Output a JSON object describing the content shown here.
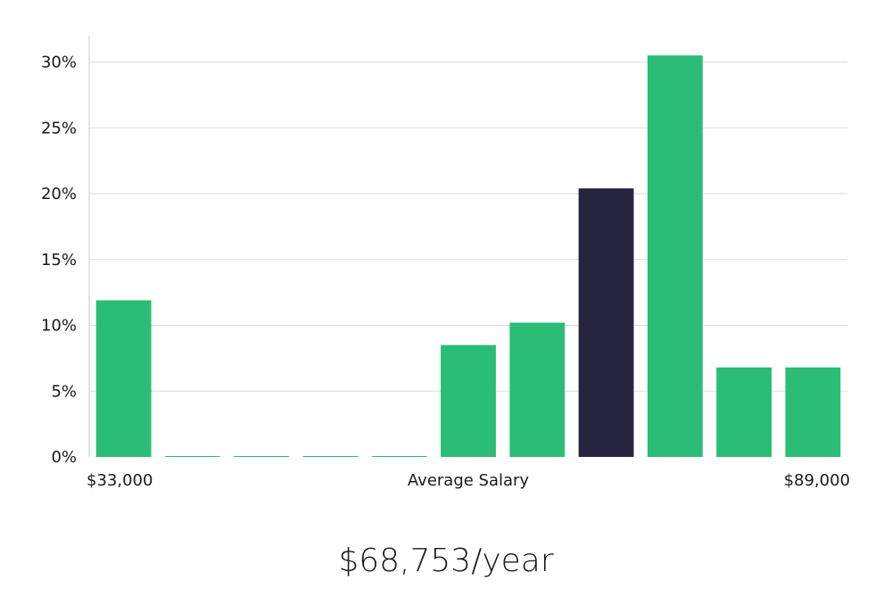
{
  "chart_data": {
    "type": "bar",
    "categories": [
      "1",
      "2",
      "3",
      "4",
      "5",
      "6",
      "7",
      "8",
      "9",
      "10",
      "11"
    ],
    "values": [
      11.9,
      0,
      0,
      0,
      0,
      8.5,
      10.2,
      20.4,
      30.5,
      6.8,
      6.8
    ],
    "highlight_index": 7,
    "ylim": [
      0,
      32
    ],
    "y_ticks": [
      0,
      5,
      10,
      15,
      20,
      25,
      30
    ],
    "y_tick_format": "percent",
    "grid": true,
    "colors": {
      "bar": "#2bbd76",
      "highlight": "#27243f",
      "grid": "#dcdcdc",
      "axis": "#cccccc"
    }
  },
  "x_axis": {
    "min_label": "$33,000",
    "center_label": "Average Salary",
    "max_label": "$89,000"
  },
  "summary": {
    "average_salary": "$68,753/year"
  }
}
